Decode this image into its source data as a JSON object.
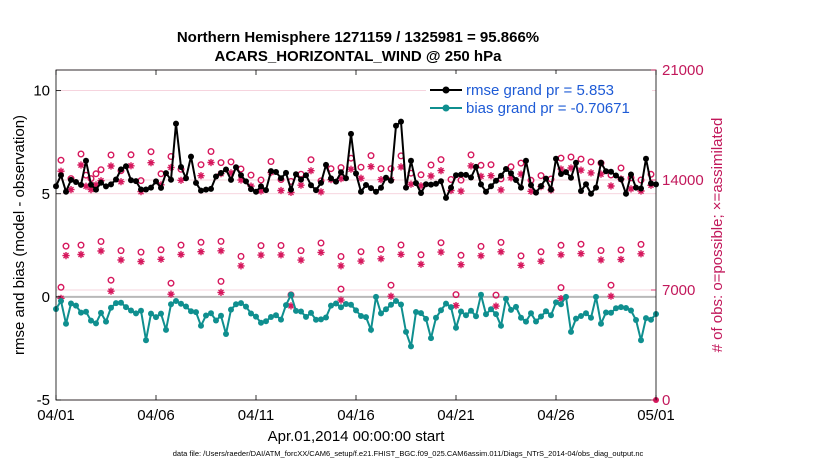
{
  "chart_data": {
    "type": "line",
    "title_line1": "Northern Hemisphere 1271159 / 1325981 = 95.866%",
    "title_line2": "ACARS_HORIZONTAL_WIND @ 250 hPa",
    "xlabel": "Apr.01,2014 00:00:00 start",
    "ylabel_left": "rmse and bias (model - observation)",
    "ylabel_right": "# of obs: o=possible; ×=assimilated",
    "x_ticks": [
      "04/01",
      "04/06",
      "04/11",
      "04/16",
      "04/21",
      "04/26",
      "05/01"
    ],
    "y_left_ticks": [
      "-5",
      "0",
      "5",
      "10"
    ],
    "y_right_ticks": [
      "0",
      "7000",
      "14000",
      "21000"
    ],
    "xlim": [
      0,
      30
    ],
    "ylim_left": [
      -5,
      11
    ],
    "ylim_right": [
      0,
      21000
    ],
    "legend": [
      {
        "label": "rmse grand pr = 5.853",
        "color": "#000000"
      },
      {
        "label": "bias grand pr = -0.70671",
        "color": "#0f8f8f"
      }
    ],
    "footer": "data file: /Users/raeder/DAI/ATM_forcXX/CAM6_setup/f.e21.FHIST_BGC.f09_025.CAM6assim.011/Diags_NTrS_2014-04/obs_diag_output.nc",
    "colors": {
      "rmse": "#000000",
      "bias": "#0f8f8f",
      "obs": "#d6185d",
      "grid": "#f3c6d3",
      "zero": "#b8b8b8"
    },
    "rmse_peaks": [
      [
        0.25,
        5.9
      ],
      [
        1.5,
        6.6
      ],
      [
        5.5,
        6.0
      ],
      [
        6.0,
        8.4
      ],
      [
        6.75,
        6.8
      ],
      [
        9.25,
        5.9
      ],
      [
        10.75,
        6.1
      ],
      [
        12.5,
        5.9
      ],
      [
        13.5,
        6.4
      ],
      [
        14.75,
        7.9
      ],
      [
        17.0,
        8.3
      ],
      [
        17.25,
        8.5
      ],
      [
        17.75,
        6.6
      ],
      [
        19.75,
        5.3
      ],
      [
        21.0,
        6.3
      ],
      [
        23.5,
        6.6
      ],
      [
        25.0,
        6.7
      ],
      [
        26.0,
        6.5
      ],
      [
        27.25,
        6.5
      ],
      [
        29.5,
        6.7
      ]
    ],
    "rmse_troughs": [
      [
        0.5,
        5.1
      ],
      [
        2.0,
        5.2
      ],
      [
        4.75,
        5.3
      ],
      [
        7.5,
        5.2
      ],
      [
        10.0,
        5.1
      ],
      [
        11.75,
        5.2
      ],
      [
        15.25,
        5.1
      ],
      [
        17.5,
        5.3
      ],
      [
        19.5,
        4.8
      ],
      [
        21.5,
        5.1
      ],
      [
        23.25,
        5.3
      ],
      [
        24.75,
        5.2
      ],
      [
        27.0,
        5.3
      ],
      [
        28.5,
        5.0
      ],
      [
        29.75,
        5.5
      ]
    ],
    "bias_peaks": [
      [
        0.25,
        -0.2
      ],
      [
        3.0,
        -0.3
      ],
      [
        6.0,
        -0.2
      ],
      [
        9.25,
        -0.3
      ],
      [
        11.5,
        -0.4
      ],
      [
        11.75,
        0.1
      ],
      [
        14.25,
        -0.5
      ],
      [
        16.0,
        0.0
      ],
      [
        17.0,
        -0.2
      ],
      [
        20.0,
        -0.0
      ],
      [
        21.25,
        0.1
      ],
      [
        22.5,
        -0.1
      ],
      [
        25.5,
        0.0
      ],
      [
        27.0,
        0.0
      ]
    ],
    "bias_troughs": [
      [
        0.5,
        -1.3
      ],
      [
        2.5,
        -1.2
      ],
      [
        4.5,
        -2.1
      ],
      [
        5.5,
        -1.6
      ],
      [
        7.25,
        -1.4
      ],
      [
        8.5,
        -1.8
      ],
      [
        11.25,
        -1.1
      ],
      [
        13.5,
        -1.0
      ],
      [
        15.75,
        -1.6
      ],
      [
        17.5,
        -1.7
      ],
      [
        17.75,
        -2.4
      ],
      [
        18.75,
        -2.0
      ],
      [
        20.0,
        -1.5
      ],
      [
        22.25,
        -1.4
      ],
      [
        23.5,
        -1.2
      ],
      [
        25.75,
        -1.7
      ],
      [
        27.25,
        -1.3
      ],
      [
        29.25,
        -2.1
      ]
    ],
    "obs_upper_days": [
      0.25,
      0.75,
      1.25,
      1.5,
      1.75,
      2.0,
      2.25,
      2.75,
      3.25,
      3.75,
      4.25,
      4.75,
      5.25,
      5.75,
      6.25,
      7.25,
      7.75,
      8.25,
      8.75,
      9.25,
      9.75,
      10.25,
      10.75,
      11.25,
      11.75,
      12.25,
      12.75,
      13.25,
      13.75,
      14.25,
      14.75,
      15.25,
      15.75,
      16.25,
      16.75,
      17.25,
      17.75,
      18.25,
      18.75,
      19.25,
      19.75,
      20.25,
      20.75,
      21.25,
      21.75,
      22.25,
      22.75,
      23.25,
      23.75,
      24.25,
      24.75,
      25.25,
      25.75,
      26.25,
      26.75,
      27.25,
      27.75,
      28.25,
      28.75,
      29.25,
      29.75
    ],
    "obs_lower_days": [
      0.5,
      1.25,
      2.25,
      3.25,
      4.25,
      5.25,
      6.25,
      7.25,
      8.25,
      9.25,
      10.25,
      11.25,
      12.25,
      13.25,
      14.25,
      15.25,
      16.25,
      17.25,
      18.25,
      19.25,
      20.25,
      21.25,
      22.25,
      23.25,
      24.25,
      25.25,
      26.25,
      27.25,
      28.25,
      29.25
    ],
    "obs_low_days": [
      0.25,
      2.75,
      5.75,
      8.25,
      11.75,
      14.25,
      16.75,
      20.0,
      22.0,
      25.25,
      27.75
    ]
  }
}
